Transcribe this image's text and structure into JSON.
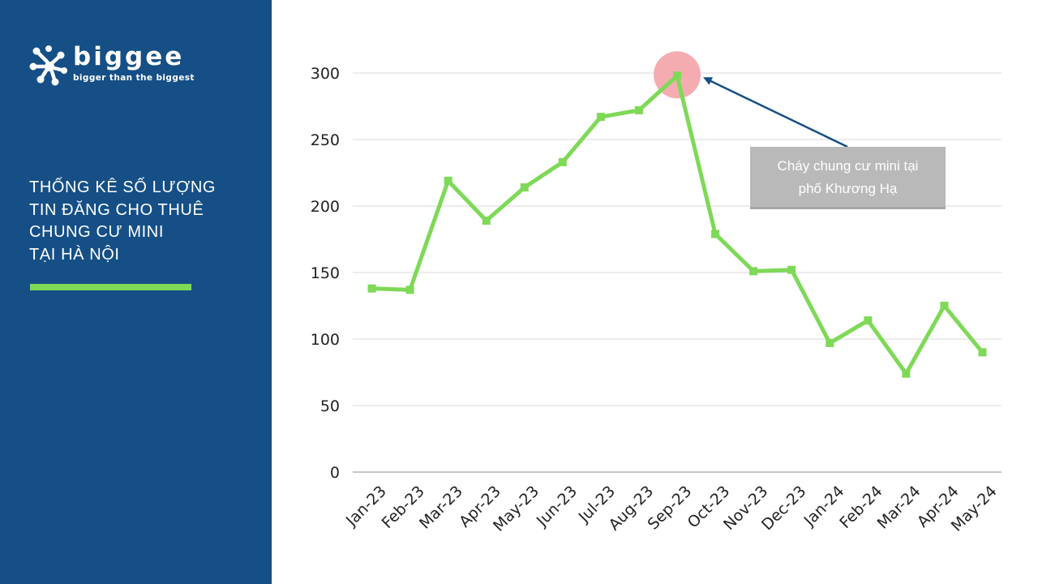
{
  "brand": {
    "name": "biggee",
    "tagline": "bigger than the biggest",
    "logo_icon": "biggee-logo-mark-icon",
    "colors": {
      "sidebar": "#154f86",
      "accent": "#7ed957"
    }
  },
  "title_lines": [
    "THỐNG KÊ SỐ LƯỢNG",
    "TIN ĐĂNG CHO THUÊ",
    "CHUNG CƯ MINI",
    "TẠI HÀ NỘI"
  ],
  "chart_data": {
    "type": "line",
    "categories": [
      "Jan-23",
      "Feb-23",
      "Mar-23",
      "Apr-23",
      "May-23",
      "Jun-23",
      "Jul-23",
      "Aug-23",
      "Sep-23",
      "Oct-23",
      "Nov-23",
      "Dec-23",
      "Jan-24",
      "Feb-24",
      "Mar-24",
      "Apr-24",
      "May-24"
    ],
    "series": [
      {
        "values": [
          138,
          137,
          219,
          189,
          214,
          233,
          267,
          272,
          298,
          179,
          151,
          152,
          97,
          114,
          74,
          125,
          90
        ],
        "color": "#7ed957"
      }
    ],
    "ylim": [
      0,
      300
    ],
    "yticks": [
      0,
      50,
      100,
      150,
      200,
      250,
      300
    ],
    "grid": true,
    "highlight": {
      "category": "Sep-23",
      "marker_color": "#f4a3a8",
      "arrow_color": "#154f86"
    },
    "annotation": {
      "lines": [
        "Cháy chung cư mini tại",
        "phố Khương Hạ"
      ],
      "color": "#b9b9b9"
    }
  }
}
